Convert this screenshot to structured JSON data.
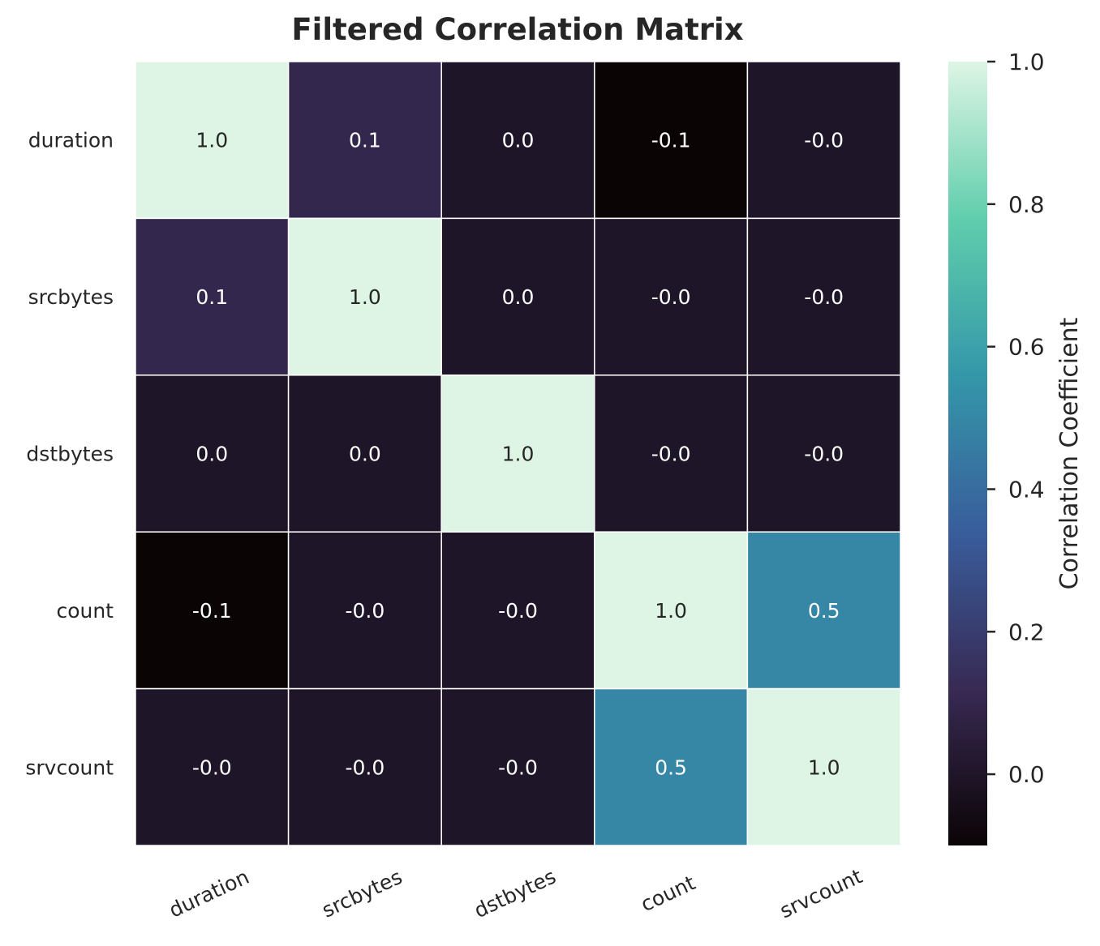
{
  "chart_data": {
    "type": "heatmap",
    "title": "Filtered Correlation Matrix",
    "x_labels": [
      "duration",
      "srcbytes",
      "dstbytes",
      "count",
      "srvcount"
    ],
    "y_labels": [
      "duration",
      "srcbytes",
      "dstbytes",
      "count",
      "srvcount"
    ],
    "values": [
      [
        1.0,
        0.1,
        0.0,
        -0.1,
        -0.0
      ],
      [
        0.1,
        1.0,
        0.0,
        -0.0,
        -0.0
      ],
      [
        0.0,
        0.0,
        1.0,
        -0.0,
        -0.0
      ],
      [
        -0.1,
        -0.0,
        -0.0,
        1.0,
        0.5
      ],
      [
        -0.0,
        -0.0,
        -0.0,
        0.5,
        1.0
      ]
    ],
    "annotations": [
      [
        "1.0",
        "0.1",
        "0.0",
        "-0.1",
        "-0.0"
      ],
      [
        "0.1",
        "1.0",
        "0.0",
        "-0.0",
        "-0.0"
      ],
      [
        "0.0",
        "0.0",
        "1.0",
        "-0.0",
        "-0.0"
      ],
      [
        "-0.1",
        "-0.0",
        "-0.0",
        "1.0",
        "0.5"
      ],
      [
        "-0.0",
        "-0.0",
        "-0.0",
        "0.5",
        "1.0"
      ]
    ],
    "colorbar": {
      "label": "Correlation Coefficient",
      "range": [
        -0.1,
        1.0
      ],
      "ticks": [
        0.0,
        0.2,
        0.4,
        0.6,
        0.8,
        1.0
      ],
      "tick_labels": [
        "0.0",
        "0.2",
        "0.4",
        "0.6",
        "0.8",
        "1.0"
      ]
    },
    "colormap": "mako",
    "colormap_stops": [
      "#0b0405",
      "#382a54",
      "#395d9c",
      "#3497a9",
      "#60ceac",
      "#def5e5"
    ],
    "grid_line_color": "#ffffff",
    "x_tick_rotation": -25
  }
}
